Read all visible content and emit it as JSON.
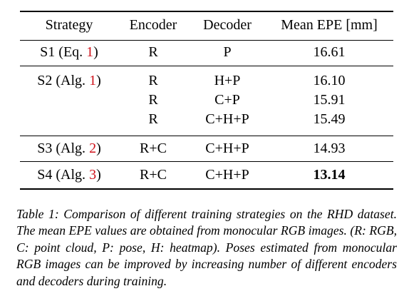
{
  "table": {
    "headers": [
      "Strategy",
      "Encoder",
      "Decoder",
      "Mean EPE [mm]"
    ],
    "rows": [
      {
        "strategy_prefix": "S1 (Eq. ",
        "strategy_ref": "1",
        "strategy_suffix": ")",
        "encoder": "R",
        "decoder": "P",
        "epe": "16.61"
      },
      {
        "strategy_prefix": "S2 (Alg. ",
        "strategy_ref": "1",
        "strategy_suffix": ")",
        "encoder": "R",
        "decoder": "H+P",
        "epe": "16.10"
      },
      {
        "strategy_prefix": "",
        "strategy_ref": "",
        "strategy_suffix": "",
        "encoder": "R",
        "decoder": "C+P",
        "epe": "15.91"
      },
      {
        "strategy_prefix": "",
        "strategy_ref": "",
        "strategy_suffix": "",
        "encoder": "R",
        "decoder": "C+H+P",
        "epe": "15.49"
      },
      {
        "strategy_prefix": "S3 (Alg. ",
        "strategy_ref": "2",
        "strategy_suffix": ")",
        "encoder": "R+C",
        "decoder": "C+H+P",
        "epe": "14.93"
      },
      {
        "strategy_prefix": "S4 (Alg. ",
        "strategy_ref": "3",
        "strategy_suffix": ")",
        "encoder": "R+C",
        "decoder": "C+H+P",
        "epe": "13.14"
      }
    ]
  },
  "caption": "Table 1:  Comparison of different training strategies on the RHD dataset. The mean EPE values are obtained from monocular RGB images. (R: RGB, C: point cloud, P: pose, H: heatmap). Poses estimated from monocular RGB images can be improved by increasing number of different encoders and decoders during training.",
  "colors": {
    "reference": "#d0121b",
    "text": "#000000"
  }
}
